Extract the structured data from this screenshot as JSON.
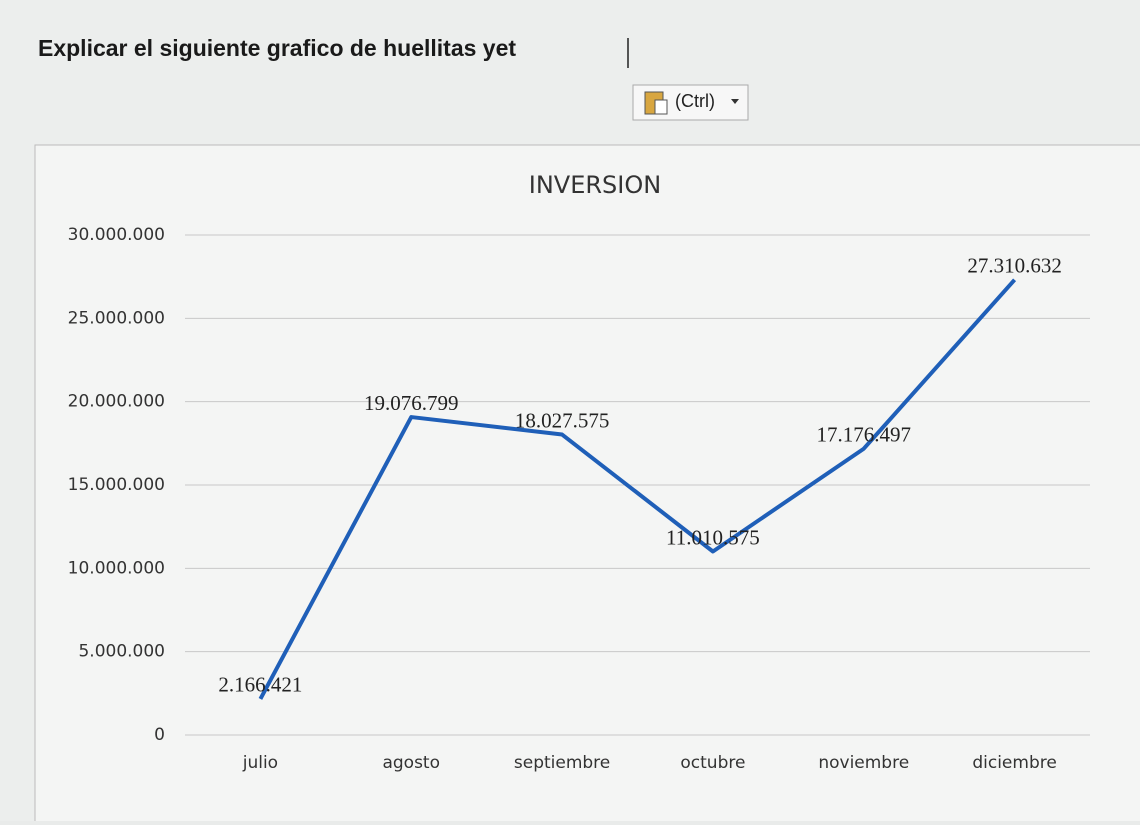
{
  "document": {
    "text": "Explicar el siguiente grafico de huellitas yet",
    "paste_button": "(Ctrl)"
  },
  "chart_data": {
    "type": "line",
    "title": "INVERSION",
    "categories": [
      "julio",
      "agosto",
      "septiembre",
      "octubre",
      "noviembre",
      "diciembre"
    ],
    "values": [
      2166421,
      19076799,
      18027575,
      11010575,
      17176497,
      27310632
    ],
    "value_labels": [
      "2.166.421",
      "19.076.799",
      "18.027.575",
      "11.010.575",
      "17.176.497",
      "27.310.632"
    ],
    "color": "#1f5fb8",
    "ylim": [
      0,
      30000000
    ],
    "yticks": [
      0,
      {
        "value": 5000000,
        "label": "5.000.000"
      },
      {
        "value": 10000000,
        "label": "10.000.000"
      },
      {
        "value": 15000000,
        "label": "15.000.000"
      },
      {
        "value": 20000000,
        "label": "20.000.000"
      },
      {
        "value": 25000000,
        "label": "25.000.000"
      },
      {
        "value": 30000000,
        "label": "30.000.000"
      }
    ],
    "grid": true
  }
}
